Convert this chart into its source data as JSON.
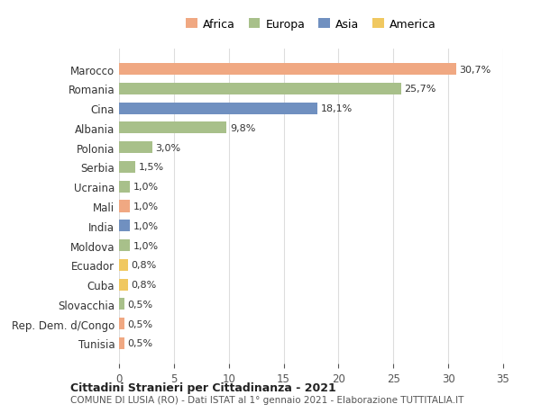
{
  "countries": [
    "Marocco",
    "Romania",
    "Cina",
    "Albania",
    "Polonia",
    "Serbia",
    "Ucraina",
    "Mali",
    "India",
    "Moldova",
    "Ecuador",
    "Cuba",
    "Slovacchia",
    "Rep. Dem. d/Congo",
    "Tunisia"
  ],
  "values": [
    30.7,
    25.7,
    18.1,
    9.8,
    3.0,
    1.5,
    1.0,
    1.0,
    1.0,
    1.0,
    0.8,
    0.8,
    0.5,
    0.5,
    0.5
  ],
  "labels": [
    "30,7%",
    "25,7%",
    "18,1%",
    "9,8%",
    "3,0%",
    "1,5%",
    "1,0%",
    "1,0%",
    "1,0%",
    "1,0%",
    "0,8%",
    "0,8%",
    "0,5%",
    "0,5%",
    "0,5%"
  ],
  "continents": [
    "Africa",
    "Europa",
    "Asia",
    "Europa",
    "Europa",
    "Europa",
    "Europa",
    "Africa",
    "Asia",
    "Europa",
    "America",
    "America",
    "Europa",
    "Africa",
    "Africa"
  ],
  "continent_colors": {
    "Africa": "#F0A882",
    "Europa": "#A8C08A",
    "Asia": "#7090C0",
    "America": "#F0C860"
  },
  "legend_order": [
    "Africa",
    "Europa",
    "Asia",
    "America"
  ],
  "bg_color": "#ffffff",
  "grid_color": "#dddddd",
  "title": "Cittadini Stranieri per Cittadinanza - 2021",
  "subtitle": "COMUNE DI LUSIA (RO) - Dati ISTAT al 1° gennaio 2021 - Elaborazione TUTTITALIA.IT",
  "xlim": [
    0,
    35
  ],
  "xticks": [
    0,
    5,
    10,
    15,
    20,
    25,
    30,
    35
  ],
  "bar_height": 0.6
}
